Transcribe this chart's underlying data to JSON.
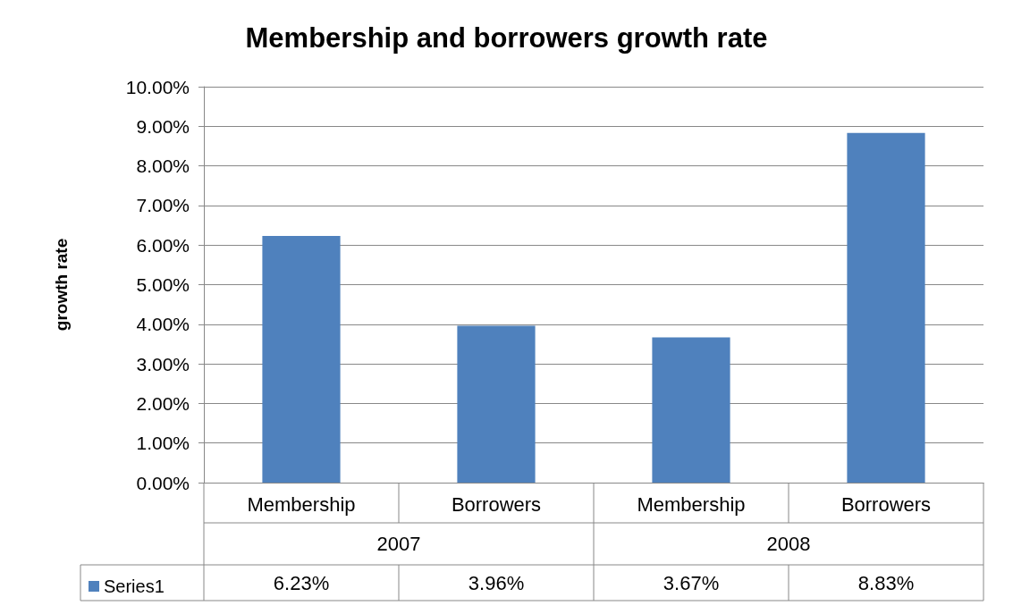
{
  "chart_data": {
    "type": "bar",
    "title": "Membership and borrowers growth rate",
    "ylabel": "growth rate",
    "categories": [
      "Membership",
      "Borrowers",
      "Membership",
      "Borrowers"
    ],
    "annotations": [
      "2007",
      "2008"
    ],
    "series": [
      {
        "name": "Series1",
        "color": "#4f81bd",
        "values": [
          6.23,
          3.96,
          3.67,
          8.83
        ],
        "value_labels": [
          "6.23%",
          "3.96%",
          "3.67%",
          "8.83%"
        ]
      }
    ],
    "ylim": [
      0,
      10
    ],
    "yticks": [
      {
        "value": 0,
        "label": "0.00%"
      },
      {
        "value": 1,
        "label": "1.00%"
      },
      {
        "value": 2,
        "label": "2.00%"
      },
      {
        "value": 3,
        "label": "3.00%"
      },
      {
        "value": 4,
        "label": "4.00%"
      },
      {
        "value": 5,
        "label": "5.00%"
      },
      {
        "value": 6,
        "label": "6.00%"
      },
      {
        "value": 7,
        "label": "7.00%"
      },
      {
        "value": 8,
        "label": "8.00%"
      },
      {
        "value": 9,
        "label": "9.00%"
      },
      {
        "value": 10,
        "label": "10.00%"
      }
    ],
    "grid": "y",
    "legend": "bottom left"
  }
}
